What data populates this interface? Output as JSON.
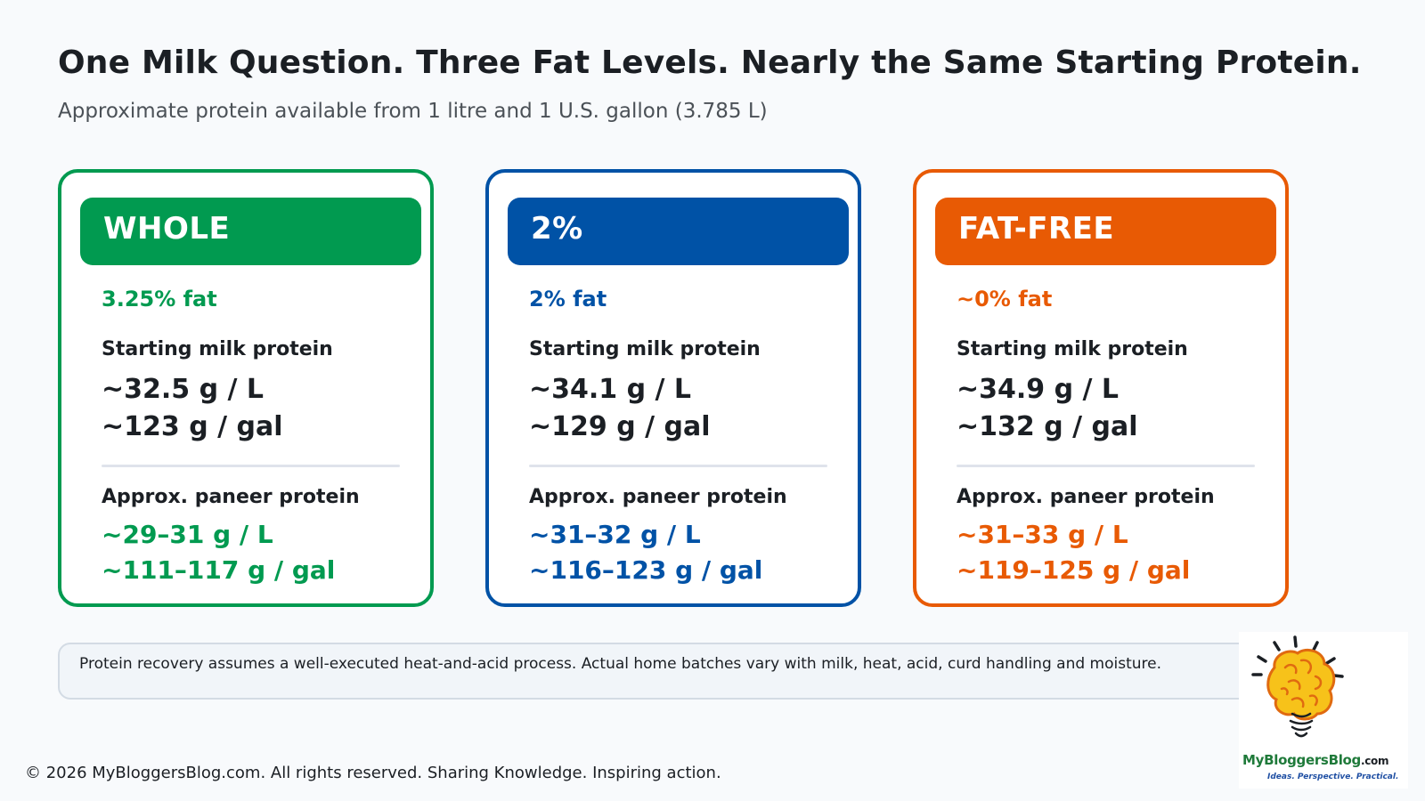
{
  "title": "One Milk Question. Three Fat Levels. Nearly the Same Starting Protein.",
  "subtitle": "Approximate protein available from 1 litre and 1 U.S. gallon (3.785 L)",
  "cards": [
    {
      "name": "WHOLE",
      "fat": "3.25% fat",
      "color": "#019a50",
      "starting_label": "Starting milk protein",
      "starting_l": "~32.5 g / L",
      "starting_gal": "~123 g / gal",
      "paneer_label": "Approx. paneer protein",
      "paneer_l": "~29–31 g / L",
      "paneer_gal": "~111–117 g / gal"
    },
    {
      "name": "2%",
      "fat": "2% fat",
      "color": "#0052a6",
      "starting_label": "Starting milk protein",
      "starting_l": "~34.1 g / L",
      "starting_gal": "~129 g / gal",
      "paneer_label": "Approx. paneer protein",
      "paneer_l": "~31–32 g / L",
      "paneer_gal": "~116–123 g / gal"
    },
    {
      "name": "FAT-FREE",
      "fat": "~0% fat",
      "color": "#e85a04",
      "starting_label": "Starting milk protein",
      "starting_l": "~34.9 g / L",
      "starting_gal": "~132 g / gal",
      "paneer_label": "Approx. paneer protein",
      "paneer_l": "~31–33 g / L",
      "paneer_gal": "~119–125 g / gal"
    }
  ],
  "note": "Protein recovery assumes a well-executed heat-and-acid process. Actual home batches vary with milk, heat, acid, curd handling and moisture.",
  "footer": "© 2026 MyBloggersBlog.com. All rights reserved. Sharing Knowledge. Inspiring action.",
  "logo": {
    "icon": "brain-lightbulb-icon",
    "brand_my": "My",
    "brand_main": "BloggersBlog",
    "brand_suffix": ".com",
    "tagline": "Ideas. Perspective. Practical."
  }
}
